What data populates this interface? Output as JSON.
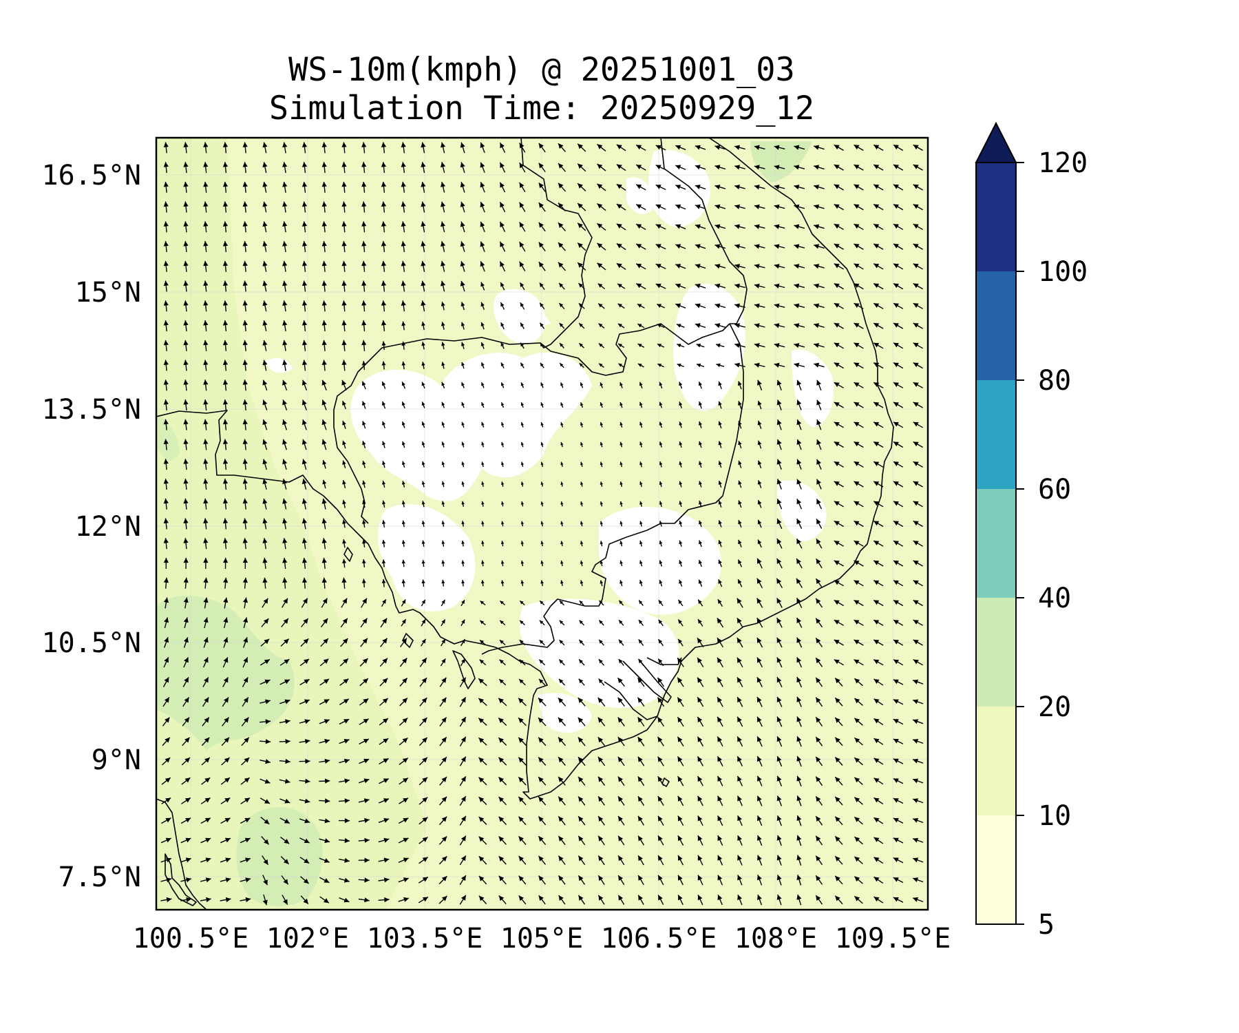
{
  "title": {
    "line1": "WS-10m(kmph) @ 20251001_03",
    "line2": "Simulation Time: 20250929_12"
  },
  "map": {
    "lon_range": [
      100.3,
      110.2
    ],
    "lat_range": [
      6.9,
      16.8
    ],
    "lon_ticks": [
      "100.5°E",
      "102°E",
      "103.5°E",
      "105°E",
      "106.5°E",
      "108°E",
      "109.5°E"
    ],
    "lat_ticks": [
      "16.5°N",
      "15°N",
      "13.5°N",
      "12°N",
      "10.5°N",
      "9°N",
      "7.5°N"
    ],
    "gridlines": true,
    "wind_vectors": "quiver arrows, dominant flow from southwest over sea, weak over land",
    "colors": {
      "coastline": "#000000",
      "background_sea": "#f0f8c8",
      "land_low_wind": "#ffffff"
    }
  },
  "colorbar": {
    "levels": [
      "5",
      "10",
      "20",
      "40",
      "60",
      "80",
      "100",
      "120"
    ],
    "extend": "max",
    "colors": [
      "#ffffd9",
      "#eef8bc",
      "#cdebb4",
      "#7ecdbb",
      "#2fa3c3",
      "#2462a9",
      "#1f2f86",
      "#0e1d57"
    ]
  }
}
